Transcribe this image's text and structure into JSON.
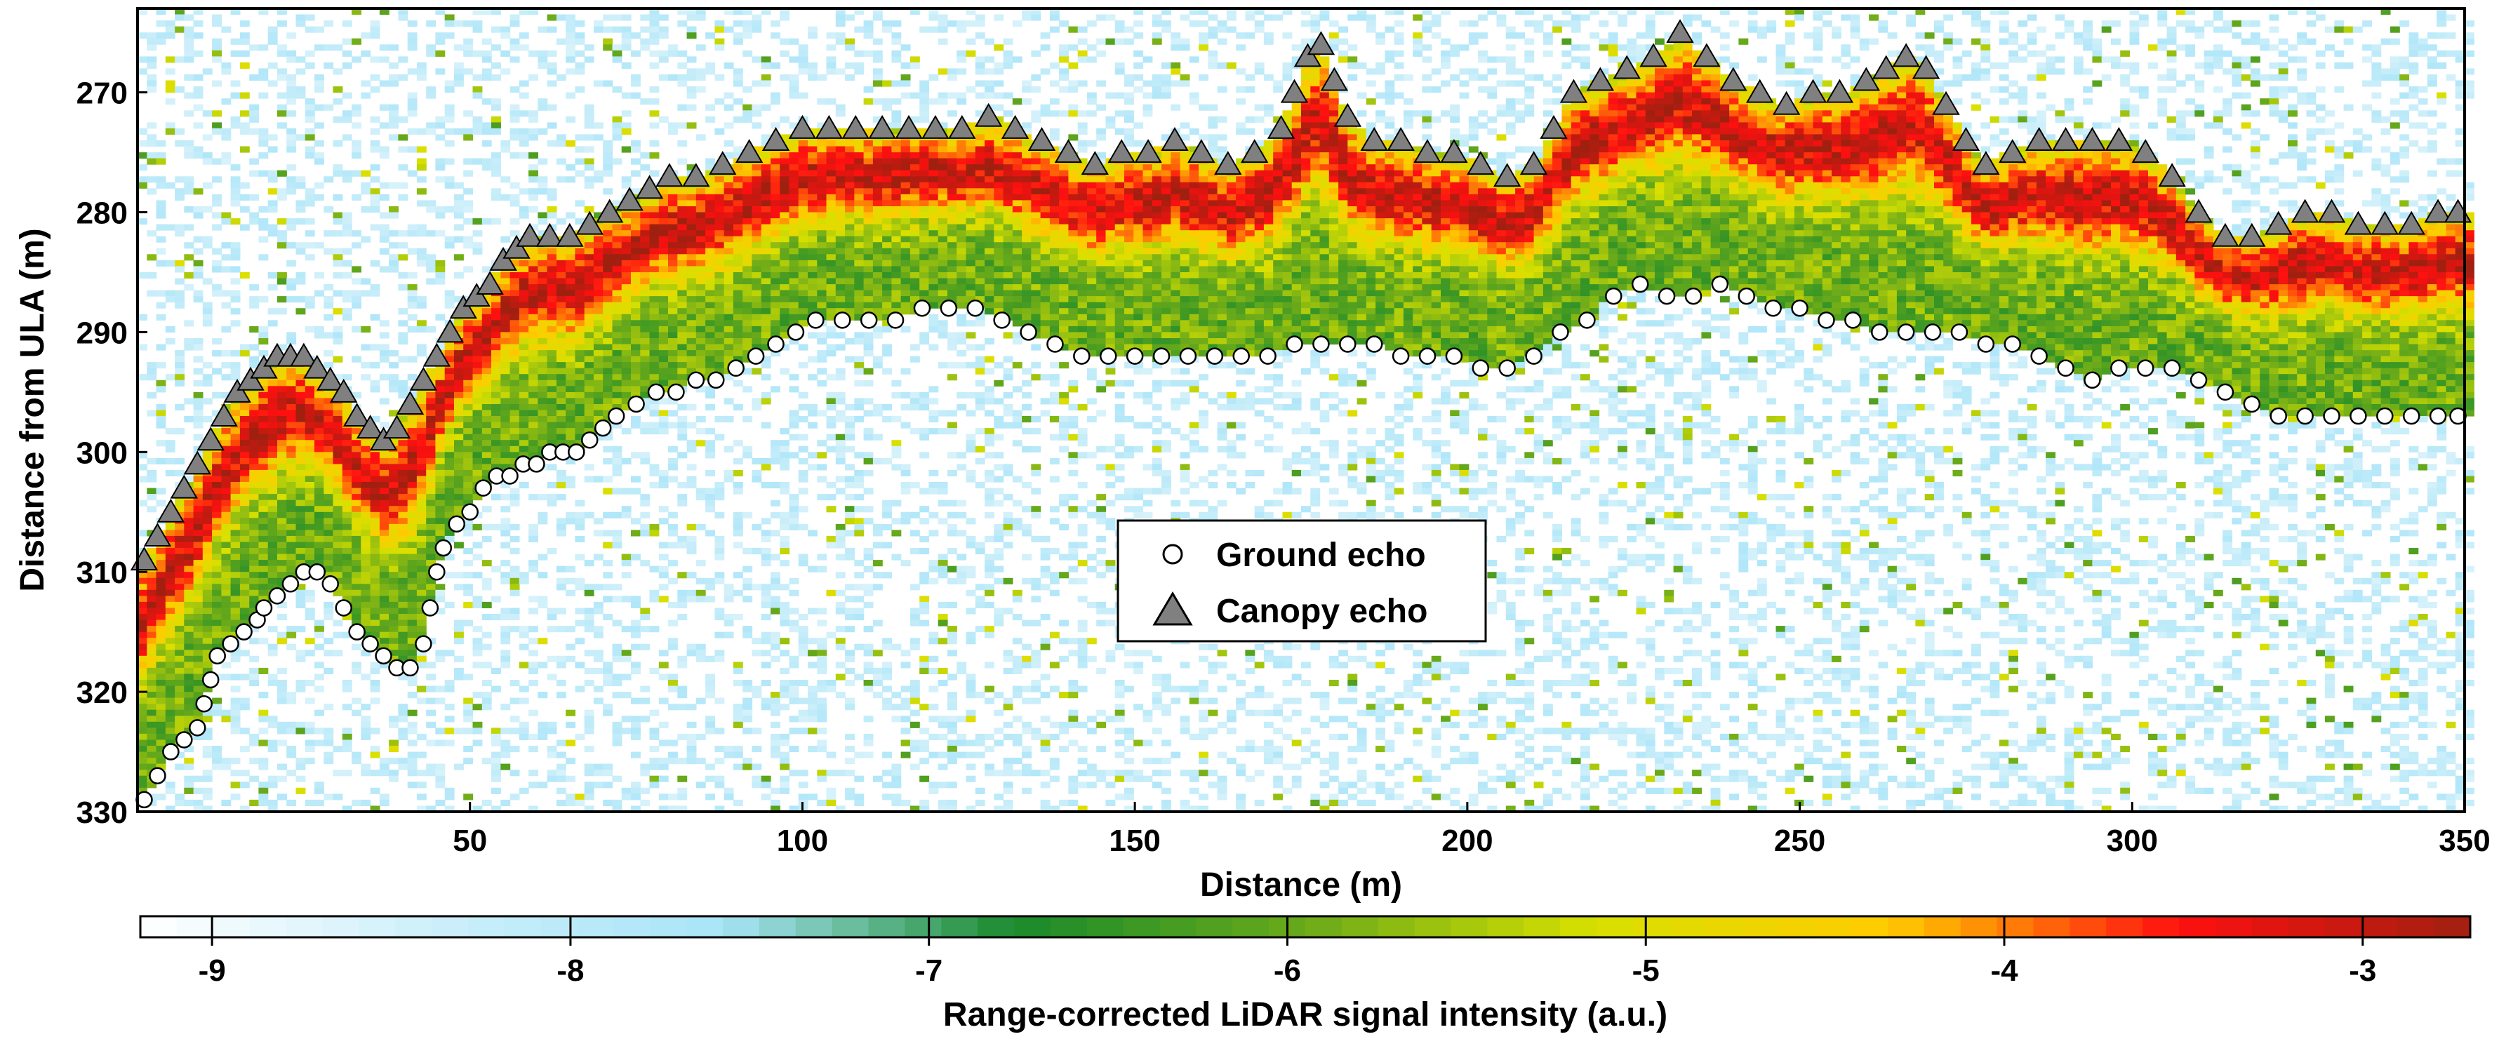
{
  "chart_data": {
    "type": "heatmap",
    "xlabel": "Distance (m)",
    "ylabel": "Distance from ULA (m)",
    "xlim": [
      0,
      350
    ],
    "ylim": [
      263,
      330
    ],
    "y_inverted": true,
    "x_ticks": [
      50,
      100,
      150,
      200,
      250,
      300,
      350
    ],
    "y_ticks": [
      270,
      280,
      290,
      300,
      310,
      320,
      330
    ],
    "grid": false,
    "legend_position": "center",
    "colorbar": {
      "label": "Range-corrected LiDAR signal intensity (a.u.)",
      "range": [
        -9.2,
        -2.7
      ],
      "ticks": [
        -9,
        -8,
        -7,
        -6,
        -5,
        -4,
        -3
      ],
      "colors": [
        "#ffffff",
        "#cdeffa",
        "#a8e4f8",
        "#1a8a2c",
        "#6aaa1a",
        "#d9e000",
        "#ffcc00",
        "#ff1010",
        "#a02010"
      ]
    },
    "series": [
      {
        "name": "Ground echo",
        "marker": "open-circle",
        "color": "#ffffff",
        "points": [
          [
            1,
            329
          ],
          [
            3,
            327
          ],
          [
            5,
            325
          ],
          [
            7,
            324
          ],
          [
            9,
            323
          ],
          [
            10,
            321
          ],
          [
            11,
            319
          ],
          [
            12,
            317
          ],
          [
            14,
            316
          ],
          [
            16,
            315
          ],
          [
            18,
            314
          ],
          [
            19,
            313
          ],
          [
            21,
            312
          ],
          [
            23,
            311
          ],
          [
            25,
            310
          ],
          [
            27,
            310
          ],
          [
            29,
            311
          ],
          [
            31,
            313
          ],
          [
            33,
            315
          ],
          [
            35,
            316
          ],
          [
            37,
            317
          ],
          [
            39,
            318
          ],
          [
            41,
            318
          ],
          [
            43,
            316
          ],
          [
            44,
            313
          ],
          [
            45,
            310
          ],
          [
            46,
            308
          ],
          [
            48,
            306
          ],
          [
            50,
            305
          ],
          [
            52,
            303
          ],
          [
            54,
            302
          ],
          [
            56,
            302
          ],
          [
            58,
            301
          ],
          [
            60,
            301
          ],
          [
            62,
            300
          ],
          [
            64,
            300
          ],
          [
            66,
            300
          ],
          [
            68,
            299
          ],
          [
            70,
            298
          ],
          [
            72,
            297
          ],
          [
            75,
            296
          ],
          [
            78,
            295
          ],
          [
            81,
            295
          ],
          [
            84,
            294
          ],
          [
            87,
            294
          ],
          [
            90,
            293
          ],
          [
            93,
            292
          ],
          [
            96,
            291
          ],
          [
            99,
            290
          ],
          [
            102,
            289
          ],
          [
            106,
            289
          ],
          [
            110,
            289
          ],
          [
            114,
            289
          ],
          [
            118,
            288
          ],
          [
            122,
            288
          ],
          [
            126,
            288
          ],
          [
            130,
            289
          ],
          [
            134,
            290
          ],
          [
            138,
            291
          ],
          [
            142,
            292
          ],
          [
            146,
            292
          ],
          [
            150,
            292
          ],
          [
            154,
            292
          ],
          [
            158,
            292
          ],
          [
            162,
            292
          ],
          [
            166,
            292
          ],
          [
            170,
            292
          ],
          [
            174,
            291
          ],
          [
            178,
            291
          ],
          [
            182,
            291
          ],
          [
            186,
            291
          ],
          [
            190,
            292
          ],
          [
            194,
            292
          ],
          [
            198,
            292
          ],
          [
            202,
            293
          ],
          [
            206,
            293
          ],
          [
            210,
            292
          ],
          [
            214,
            290
          ],
          [
            218,
            289
          ],
          [
            222,
            287
          ],
          [
            226,
            286
          ],
          [
            230,
            287
          ],
          [
            234,
            287
          ],
          [
            238,
            286
          ],
          [
            242,
            287
          ],
          [
            246,
            288
          ],
          [
            250,
            288
          ],
          [
            254,
            289
          ],
          [
            258,
            289
          ],
          [
            262,
            290
          ],
          [
            266,
            290
          ],
          [
            270,
            290
          ],
          [
            274,
            290
          ],
          [
            278,
            291
          ],
          [
            282,
            291
          ],
          [
            286,
            292
          ],
          [
            290,
            293
          ],
          [
            294,
            294
          ],
          [
            298,
            293
          ],
          [
            302,
            293
          ],
          [
            306,
            293
          ],
          [
            310,
            294
          ],
          [
            314,
            295
          ],
          [
            318,
            296
          ],
          [
            322,
            297
          ],
          [
            326,
            297
          ],
          [
            330,
            297
          ],
          [
            334,
            297
          ],
          [
            338,
            297
          ],
          [
            342,
            297
          ],
          [
            346,
            297
          ],
          [
            349,
            297
          ]
        ]
      },
      {
        "name": "Canopy echo",
        "marker": "filled-triangle",
        "color": "#808080",
        "points": [
          [
            1,
            309
          ],
          [
            3,
            307
          ],
          [
            5,
            305
          ],
          [
            7,
            303
          ],
          [
            9,
            301
          ],
          [
            11,
            299
          ],
          [
            13,
            297
          ],
          [
            15,
            295
          ],
          [
            17,
            294
          ],
          [
            19,
            293
          ],
          [
            21,
            292
          ],
          [
            23,
            292
          ],
          [
            25,
            292
          ],
          [
            27,
            293
          ],
          [
            29,
            294
          ],
          [
            31,
            295
          ],
          [
            33,
            297
          ],
          [
            35,
            298
          ],
          [
            37,
            299
          ],
          [
            39,
            298
          ],
          [
            41,
            296
          ],
          [
            43,
            294
          ],
          [
            45,
            292
          ],
          [
            47,
            290
          ],
          [
            49,
            288
          ],
          [
            51,
            287
          ],
          [
            53,
            286
          ],
          [
            55,
            284
          ],
          [
            57,
            283
          ],
          [
            59,
            282
          ],
          [
            62,
            282
          ],
          [
            65,
            282
          ],
          [
            68,
            281
          ],
          [
            71,
            280
          ],
          [
            74,
            279
          ],
          [
            77,
            278
          ],
          [
            80,
            277
          ],
          [
            84,
            277
          ],
          [
            88,
            276
          ],
          [
            92,
            275
          ],
          [
            96,
            274
          ],
          [
            100,
            273
          ],
          [
            104,
            273
          ],
          [
            108,
            273
          ],
          [
            112,
            273
          ],
          [
            116,
            273
          ],
          [
            120,
            273
          ],
          [
            124,
            273
          ],
          [
            128,
            272
          ],
          [
            132,
            273
          ],
          [
            136,
            274
          ],
          [
            140,
            275
          ],
          [
            144,
            276
          ],
          [
            148,
            275
          ],
          [
            152,
            275
          ],
          [
            156,
            274
          ],
          [
            160,
            275
          ],
          [
            164,
            276
          ],
          [
            168,
            275
          ],
          [
            172,
            273
          ],
          [
            174,
            270
          ],
          [
            176,
            267
          ],
          [
            178,
            266
          ],
          [
            180,
            269
          ],
          [
            182,
            272
          ],
          [
            186,
            274
          ],
          [
            190,
            274
          ],
          [
            194,
            275
          ],
          [
            198,
            275
          ],
          [
            202,
            276
          ],
          [
            206,
            277
          ],
          [
            210,
            276
          ],
          [
            213,
            273
          ],
          [
            216,
            270
          ],
          [
            220,
            269
          ],
          [
            224,
            268
          ],
          [
            228,
            267
          ],
          [
            232,
            265
          ],
          [
            236,
            267
          ],
          [
            240,
            269
          ],
          [
            244,
            270
          ],
          [
            248,
            271
          ],
          [
            252,
            270
          ],
          [
            256,
            270
          ],
          [
            260,
            269
          ],
          [
            263,
            268
          ],
          [
            266,
            267
          ],
          [
            269,
            268
          ],
          [
            272,
            271
          ],
          [
            275,
            274
          ],
          [
            278,
            276
          ],
          [
            282,
            275
          ],
          [
            286,
            274
          ],
          [
            290,
            274
          ],
          [
            294,
            274
          ],
          [
            298,
            274
          ],
          [
            302,
            275
          ],
          [
            306,
            277
          ],
          [
            310,
            280
          ],
          [
            314,
            282
          ],
          [
            318,
            282
          ],
          [
            322,
            281
          ],
          [
            326,
            280
          ],
          [
            330,
            280
          ],
          [
            334,
            281
          ],
          [
            338,
            281
          ],
          [
            342,
            281
          ],
          [
            346,
            280
          ],
          [
            349,
            280
          ]
        ]
      }
    ]
  }
}
